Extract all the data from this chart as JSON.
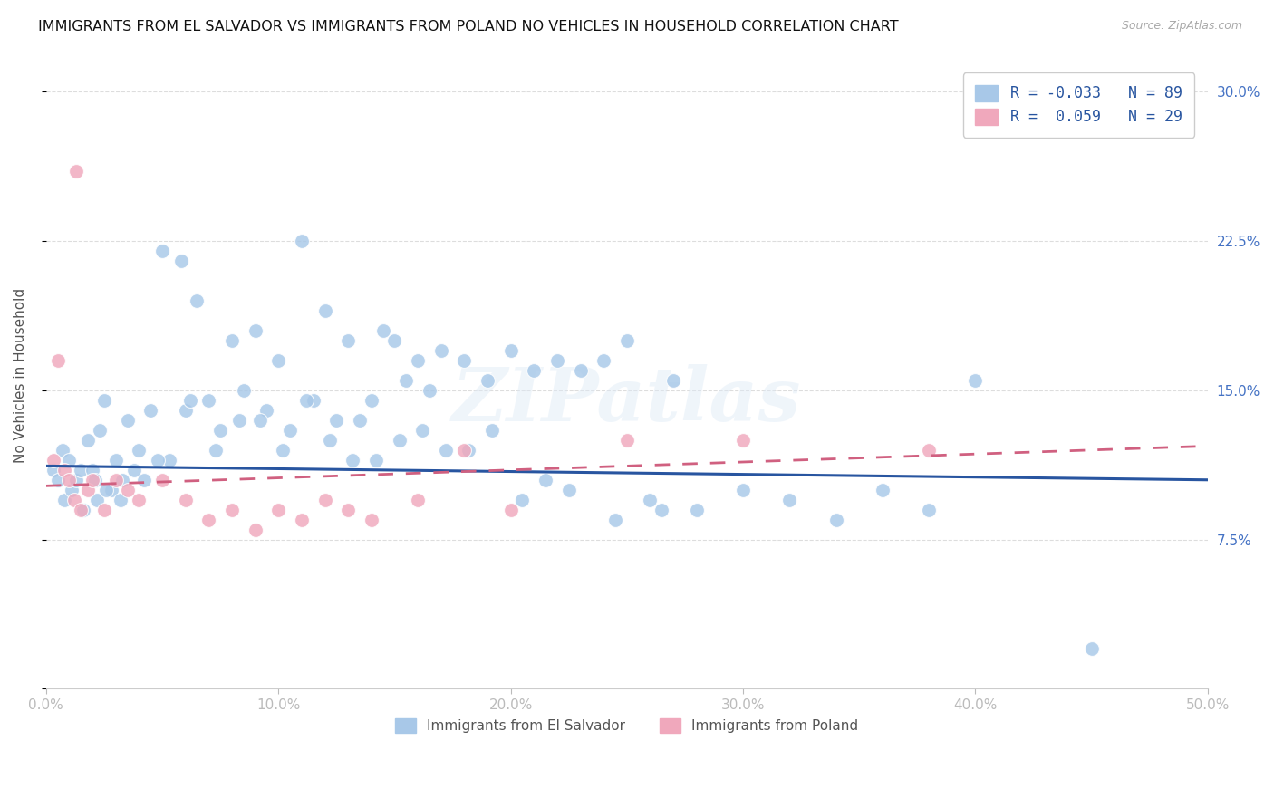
{
  "title": "IMMIGRANTS FROM EL SALVADOR VS IMMIGRANTS FROM POLAND NO VEHICLES IN HOUSEHOLD CORRELATION CHART",
  "source": "Source: ZipAtlas.com",
  "ylabel": "No Vehicles in Household",
  "xlim": [
    0.0,
    50.0
  ],
  "ylim": [
    0.0,
    31.5
  ],
  "r_salvador": -0.033,
  "n_salvador": 89,
  "r_poland": 0.059,
  "n_poland": 29,
  "legend_label_salvador": "Immigrants from El Salvador",
  "legend_label_poland": "Immigrants from Poland",
  "color_salvador": "#a8c8e8",
  "color_poland": "#f0a8bc",
  "line_color_salvador": "#2855a0",
  "line_color_poland": "#d06080",
  "watermark": "ZIPatlas",
  "yticks": [
    0.0,
    7.5,
    15.0,
    22.5,
    30.0
  ],
  "xticks": [
    0.0,
    10.0,
    20.0,
    30.0,
    40.0,
    50.0
  ],
  "sal_line_start_y": 11.2,
  "sal_line_end_y": 10.5,
  "pol_line_start_y": 10.2,
  "pol_line_end_y": 12.2,
  "sal_x": [
    0.3,
    0.5,
    0.7,
    0.8,
    1.0,
    1.1,
    1.3,
    1.5,
    1.6,
    1.8,
    2.0,
    2.1,
    2.3,
    2.5,
    2.8,
    3.0,
    3.2,
    3.5,
    3.8,
    4.0,
    4.2,
    4.5,
    5.0,
    5.3,
    5.8,
    6.0,
    6.5,
    7.0,
    7.5,
    8.0,
    8.5,
    9.0,
    9.5,
    10.0,
    10.5,
    11.0,
    11.5,
    12.0,
    12.5,
    13.0,
    13.5,
    14.0,
    14.5,
    15.0,
    15.5,
    16.0,
    16.5,
    17.0,
    18.0,
    19.0,
    20.0,
    21.0,
    22.0,
    23.0,
    24.0,
    25.0,
    26.0,
    27.0,
    28.0,
    30.0,
    32.0,
    34.0,
    36.0,
    38.0,
    40.0,
    45.0,
    2.2,
    2.6,
    3.3,
    4.8,
    6.2,
    7.3,
    8.3,
    9.2,
    10.2,
    11.2,
    12.2,
    13.2,
    14.2,
    15.2,
    16.2,
    17.2,
    18.2,
    19.2,
    20.5,
    21.5,
    22.5,
    24.5,
    26.5
  ],
  "sal_y": [
    11.0,
    10.5,
    12.0,
    9.5,
    11.5,
    10.0,
    10.5,
    11.0,
    9.0,
    12.5,
    11.0,
    10.5,
    13.0,
    14.5,
    10.0,
    11.5,
    9.5,
    13.5,
    11.0,
    12.0,
    10.5,
    14.0,
    22.0,
    11.5,
    21.5,
    14.0,
    19.5,
    14.5,
    13.0,
    17.5,
    15.0,
    18.0,
    14.0,
    16.5,
    13.0,
    22.5,
    14.5,
    19.0,
    13.5,
    17.5,
    13.5,
    14.5,
    18.0,
    17.5,
    15.5,
    16.5,
    15.0,
    17.0,
    16.5,
    15.5,
    17.0,
    16.0,
    16.5,
    16.0,
    16.5,
    17.5,
    9.5,
    15.5,
    9.0,
    10.0,
    9.5,
    8.5,
    10.0,
    9.0,
    15.5,
    2.0,
    9.5,
    10.0,
    10.5,
    11.5,
    14.5,
    12.0,
    13.5,
    13.5,
    12.0,
    14.5,
    12.5,
    11.5,
    11.5,
    12.5,
    13.0,
    12.0,
    12.0,
    13.0,
    9.5,
    10.5,
    10.0,
    8.5,
    9.0
  ],
  "pol_x": [
    0.3,
    0.5,
    0.8,
    1.0,
    1.2,
    1.5,
    1.8,
    2.0,
    2.5,
    3.0,
    3.5,
    4.0,
    5.0,
    6.0,
    7.0,
    8.0,
    9.0,
    10.0,
    11.0,
    12.0,
    13.0,
    14.0,
    16.0,
    18.0,
    20.0,
    25.0,
    30.0,
    38.0,
    1.3
  ],
  "pol_y": [
    11.5,
    16.5,
    11.0,
    10.5,
    9.5,
    9.0,
    10.0,
    10.5,
    9.0,
    10.5,
    10.0,
    9.5,
    10.5,
    9.5,
    8.5,
    9.0,
    8.0,
    9.0,
    8.5,
    9.5,
    9.0,
    8.5,
    9.5,
    12.0,
    9.0,
    12.5,
    12.5,
    12.0,
    26.0
  ]
}
